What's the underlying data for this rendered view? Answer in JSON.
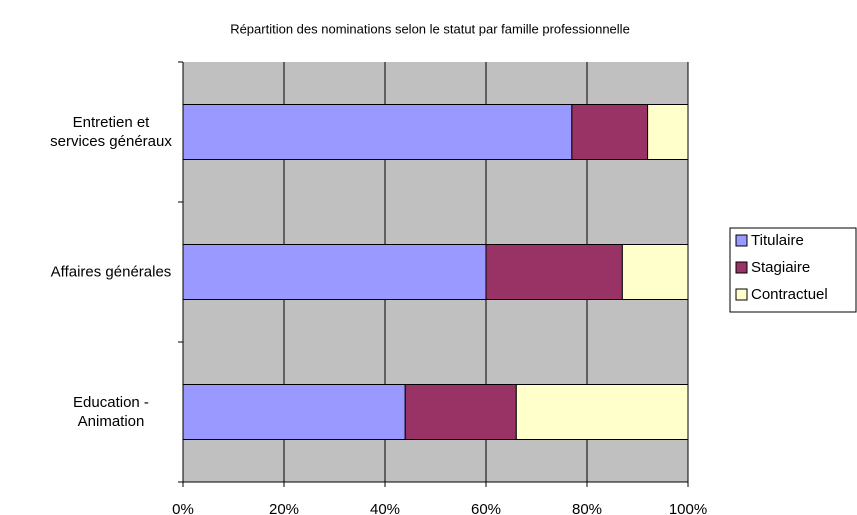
{
  "chart_data": {
    "type": "stacked_barh_100",
    "title": "Répartition des nominations selon le statut par famille professionnelle",
    "categories": [
      "Entretien et services généraux",
      "Affaires générales",
      "Education - Animation"
    ],
    "series": [
      {
        "name": "Titulaire",
        "color": "#9999ff",
        "values": [
          77,
          60,
          44
        ]
      },
      {
        "name": "Stagiaire",
        "color": "#993366",
        "values": [
          15,
          27,
          22
        ]
      },
      {
        "name": "Contractuel",
        "color": "#ffffcc",
        "values": [
          8,
          13,
          34
        ]
      }
    ],
    "xlim": [
      0,
      100
    ],
    "xticks": [
      {
        "value": 0,
        "label": "0%"
      },
      {
        "value": 20,
        "label": "20%"
      },
      {
        "value": 40,
        "label": "40%"
      },
      {
        "value": 60,
        "label": "60%"
      },
      {
        "value": 80,
        "label": "80%"
      },
      {
        "value": 100,
        "label": "100%"
      }
    ],
    "grid": true,
    "legend": "right"
  }
}
